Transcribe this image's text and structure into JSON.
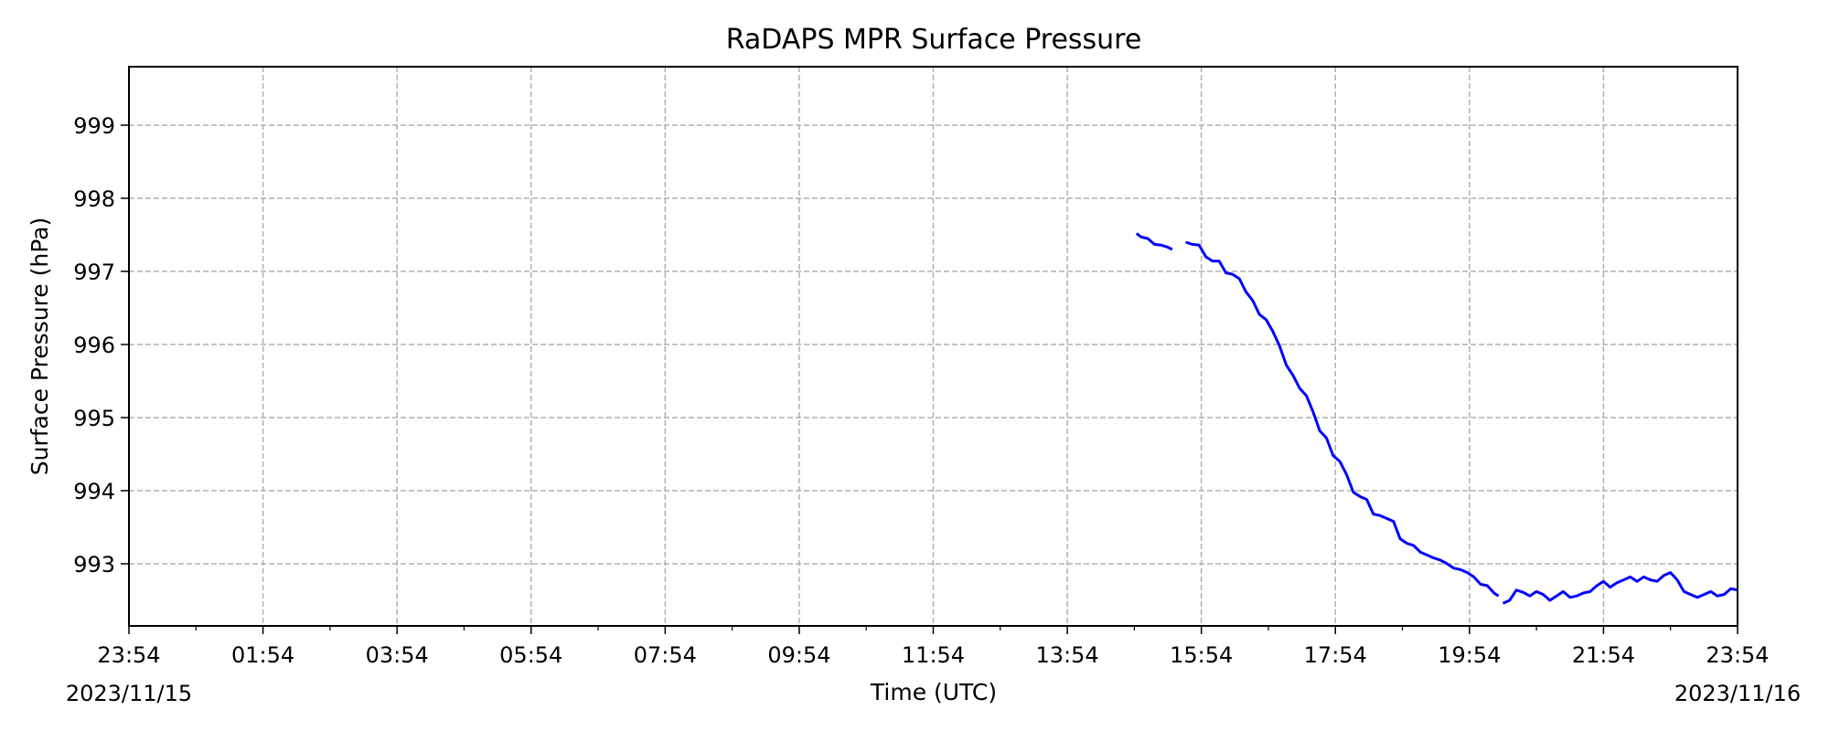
{
  "chart_data": {
    "type": "line",
    "title": "RaDAPS MPR Surface Pressure",
    "xlabel": "Time (UTC)",
    "ylabel": "Surface Pressure (hPa)",
    "xlim": [
      "2023-11-15T23:54",
      "2023-11-16T23:54"
    ],
    "ylim": [
      992.15,
      999.8
    ],
    "x_ticks": [
      "23:54",
      "01:54",
      "03:54",
      "05:54",
      "07:54",
      "09:54",
      "11:54",
      "13:54",
      "15:54",
      "17:54",
      "19:54",
      "21:54",
      "23:54"
    ],
    "x_date_start": "2023/11/15",
    "x_date_end": "2023/11/16",
    "y_ticks": [
      993,
      994,
      995,
      996,
      997,
      998,
      999
    ],
    "grid": true,
    "line_color": "#0000ff",
    "series": [
      {
        "segments": [
          [
            [
              "2023-11-16T14:56",
              997.52
            ],
            [
              "2023-11-16T15:00",
              997.47
            ],
            [
              "2023-11-16T15:06",
              997.45
            ],
            [
              "2023-11-16T15:12",
              997.37
            ],
            [
              "2023-11-16T15:18",
              997.36
            ],
            [
              "2023-11-16T15:24",
              997.33
            ],
            [
              "2023-11-16T15:28",
              997.3
            ]
          ],
          [
            [
              "2023-11-16T15:40",
              997.4
            ],
            [
              "2023-11-16T15:46",
              997.37
            ],
            [
              "2023-11-16T15:52",
              997.36
            ],
            [
              "2023-11-16T15:58",
              997.2
            ],
            [
              "2023-11-16T16:04",
              997.14
            ],
            [
              "2023-11-16T16:10",
              997.14
            ],
            [
              "2023-11-16T16:16",
              996.98
            ],
            [
              "2023-11-16T16:22",
              996.96
            ],
            [
              "2023-11-16T16:28",
              996.9
            ],
            [
              "2023-11-16T16:34",
              996.72
            ],
            [
              "2023-11-16T16:40",
              996.6
            ],
            [
              "2023-11-16T16:46",
              996.41
            ],
            [
              "2023-11-16T16:52",
              996.34
            ],
            [
              "2023-11-16T16:58",
              996.18
            ],
            [
              "2023-11-16T17:04",
              995.98
            ],
            [
              "2023-11-16T17:10",
              995.72
            ],
            [
              "2023-11-16T17:16",
              995.58
            ],
            [
              "2023-11-16T17:22",
              995.4
            ],
            [
              "2023-11-16T17:28",
              995.3
            ],
            [
              "2023-11-16T17:34",
              995.08
            ],
            [
              "2023-11-16T17:40",
              994.82
            ],
            [
              "2023-11-16T17:46",
              994.72
            ],
            [
              "2023-11-16T17:52",
              994.48
            ],
            [
              "2023-11-16T17:58",
              994.4
            ],
            [
              "2023-11-16T18:04",
              994.22
            ],
            [
              "2023-11-16T18:10",
              993.98
            ],
            [
              "2023-11-16T18:16",
              993.92
            ],
            [
              "2023-11-16T18:22",
              993.88
            ],
            [
              "2023-11-16T18:28",
              993.68
            ],
            [
              "2023-11-16T18:34",
              993.66
            ],
            [
              "2023-11-16T18:40",
              993.62
            ],
            [
              "2023-11-16T18:46",
              993.58
            ],
            [
              "2023-11-16T18:52",
              993.34
            ],
            [
              "2023-11-16T18:58",
              993.28
            ],
            [
              "2023-11-16T19:04",
              993.25
            ],
            [
              "2023-11-16T19:10",
              993.16
            ],
            [
              "2023-11-16T19:16",
              993.12
            ],
            [
              "2023-11-16T19:22",
              993.08
            ],
            [
              "2023-11-16T19:28",
              993.05
            ],
            [
              "2023-11-16T19:34",
              993.0
            ],
            [
              "2023-11-16T19:40",
              992.94
            ],
            [
              "2023-11-16T19:46",
              992.92
            ],
            [
              "2023-11-16T19:52",
              992.88
            ],
            [
              "2023-11-16T19:58",
              992.82
            ],
            [
              "2023-11-16T20:04",
              992.72
            ],
            [
              "2023-11-16T20:10",
              992.7
            ],
            [
              "2023-11-16T20:16",
              992.6
            ],
            [
              "2023-11-16T20:20",
              992.56
            ]
          ],
          [
            [
              "2023-11-16T20:24",
              992.46
            ],
            [
              "2023-11-16T20:30",
              992.5
            ],
            [
              "2023-11-16T20:36",
              992.64
            ],
            [
              "2023-11-16T20:42",
              992.61
            ],
            [
              "2023-11-16T20:48",
              992.56
            ],
            [
              "2023-11-16T20:54",
              992.62
            ],
            [
              "2023-11-16T21:00",
              992.58
            ],
            [
              "2023-11-16T21:06",
              992.5
            ],
            [
              "2023-11-16T21:12",
              992.56
            ],
            [
              "2023-11-16T21:18",
              992.62
            ],
            [
              "2023-11-16T21:24",
              992.54
            ],
            [
              "2023-11-16T21:30",
              992.56
            ],
            [
              "2023-11-16T21:36",
              992.6
            ],
            [
              "2023-11-16T21:42",
              992.62
            ],
            [
              "2023-11-16T21:48",
              992.7
            ],
            [
              "2023-11-16T21:54",
              992.76
            ],
            [
              "2023-11-16T22:00",
              992.68
            ],
            [
              "2023-11-16T22:06",
              992.74
            ],
            [
              "2023-11-16T22:12",
              992.78
            ],
            [
              "2023-11-16T22:18",
              992.82
            ],
            [
              "2023-11-16T22:24",
              992.76
            ],
            [
              "2023-11-16T22:30",
              992.82
            ],
            [
              "2023-11-16T22:36",
              992.78
            ],
            [
              "2023-11-16T22:42",
              992.76
            ],
            [
              "2023-11-16T22:48",
              992.84
            ],
            [
              "2023-11-16T22:54",
              992.88
            ],
            [
              "2023-11-16T23:00",
              992.78
            ],
            [
              "2023-11-16T23:06",
              992.62
            ],
            [
              "2023-11-16T23:12",
              992.58
            ],
            [
              "2023-11-16T23:18",
              992.54
            ],
            [
              "2023-11-16T23:24",
              992.58
            ],
            [
              "2023-11-16T23:30",
              992.62
            ],
            [
              "2023-11-16T23:36",
              992.56
            ],
            [
              "2023-11-16T23:42",
              992.58
            ],
            [
              "2023-11-16T23:48",
              992.66
            ],
            [
              "2023-11-16T23:54",
              992.64
            ]
          ]
        ]
      }
    ]
  }
}
